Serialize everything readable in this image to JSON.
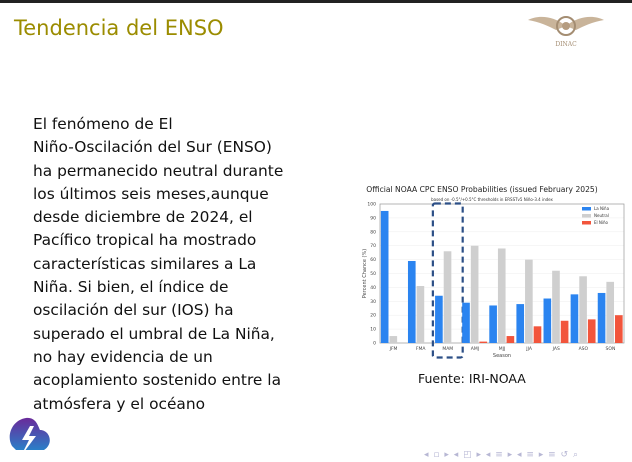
{
  "slide": {
    "title": "Tendencia del ENSO",
    "logo_text": "DINAC",
    "body_lines": [
      "El fenómeno de El",
      "Niño-Oscilación del Sur (ENSO)",
      "ha permanecido neutral durante",
      "los últimos seis meses,aunque",
      "desde diciembre de 2024, el",
      "Pacífico tropical ha mostrado",
      "características similares a La",
      "Niña. Si bien, el índice de",
      "oscilación del sur (IOS) ha",
      "superado el umbral de La Niña,",
      "no hay evidencia de un",
      "acoplamiento sostenido entre la",
      "atmósfera y el océano"
    ],
    "source": "Fuente: IRI-NOAA",
    "nav_symbols": "◂ ▫ ▸ ◂ ◰ ▸ ◂ ≡ ▸ ◂ ≡ ▸ ≡ ↺ ⌕"
  },
  "chart_data": {
    "type": "bar",
    "title": "Official NOAA CPC ENSO Probabilities (issued February 2025)",
    "subtitle": "based on -0.5°/+0.5°C thresholds in ERSSTv5 Niño-3.4 index",
    "xlabel": "Season",
    "ylabel": "Percent Chance (%)",
    "ylim": [
      0,
      100
    ],
    "yticks": [
      0,
      10,
      20,
      30,
      40,
      50,
      60,
      70,
      80,
      90,
      100
    ],
    "categories": [
      "JFM",
      "FMA",
      "MAM",
      "AMJ",
      "MJJ",
      "JJA",
      "JAS",
      "ASO",
      "SON"
    ],
    "series": [
      {
        "name": "La Niña",
        "color": "#2b84f0",
        "values": [
          95,
          59,
          34,
          29,
          27,
          28,
          32,
          35,
          36
        ]
      },
      {
        "name": "Neutral",
        "color": "#cfcfcf",
        "values": [
          5,
          41,
          66,
          70,
          68,
          60,
          52,
          48,
          44
        ]
      },
      {
        "name": "El Niño",
        "color": "#f2553c",
        "values": [
          0,
          0,
          0,
          1,
          5,
          12,
          16,
          17,
          20
        ]
      }
    ],
    "highlighted_category": "MAM",
    "highlight_color": "#2c4f86",
    "legend": "top-right",
    "grid": true
  }
}
